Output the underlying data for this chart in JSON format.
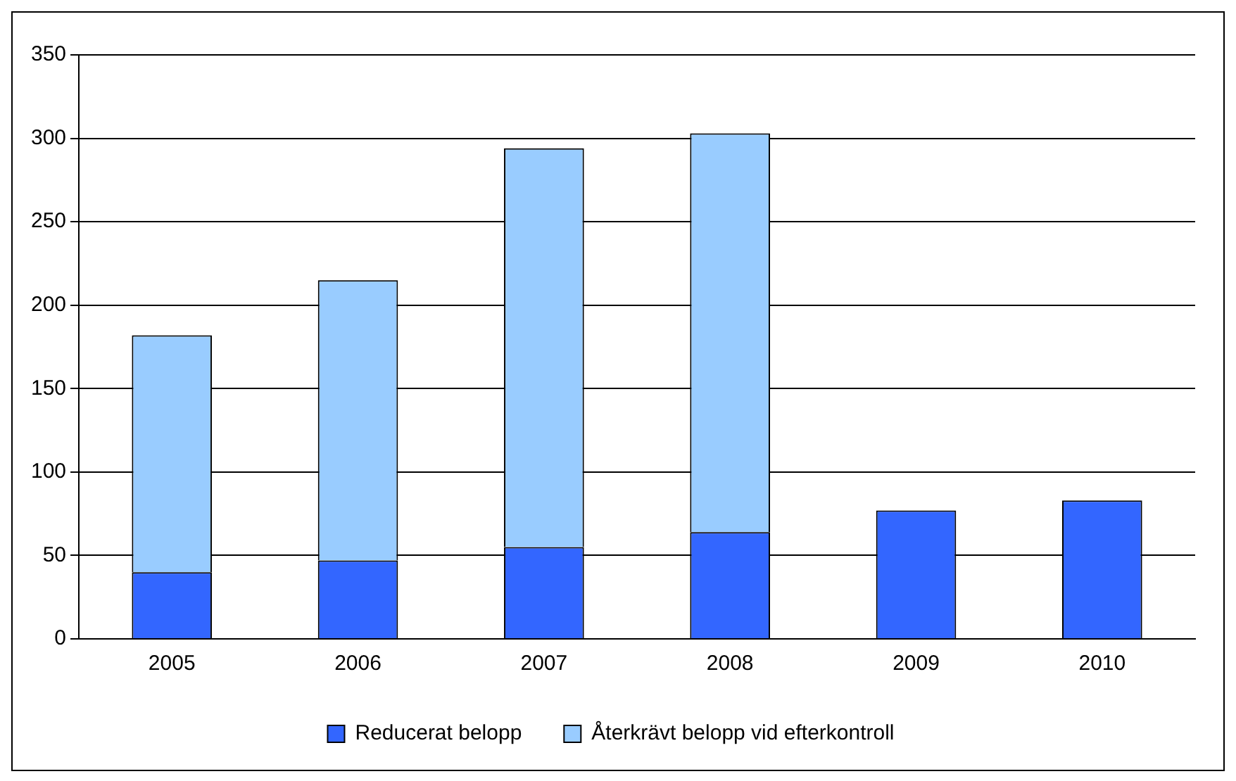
{
  "chart_data": {
    "type": "bar",
    "stacked": true,
    "categories": [
      "2005",
      "2006",
      "2007",
      "2008",
      "2009",
      "2010"
    ],
    "series": [
      {
        "name": "Reducerat belopp",
        "color": "#3366ff",
        "values": [
          40,
          47,
          55,
          64,
          77,
          83
        ]
      },
      {
        "name": "Återkrävt belopp vid efterkontroll",
        "color": "#99ccff",
        "values": [
          142,
          168,
          239,
          239,
          null,
          null
        ]
      }
    ],
    "ylim": [
      0,
      350
    ],
    "yticks": [
      0,
      50,
      100,
      150,
      200,
      250,
      300,
      350
    ],
    "grid": "y",
    "legend": "bottom"
  }
}
